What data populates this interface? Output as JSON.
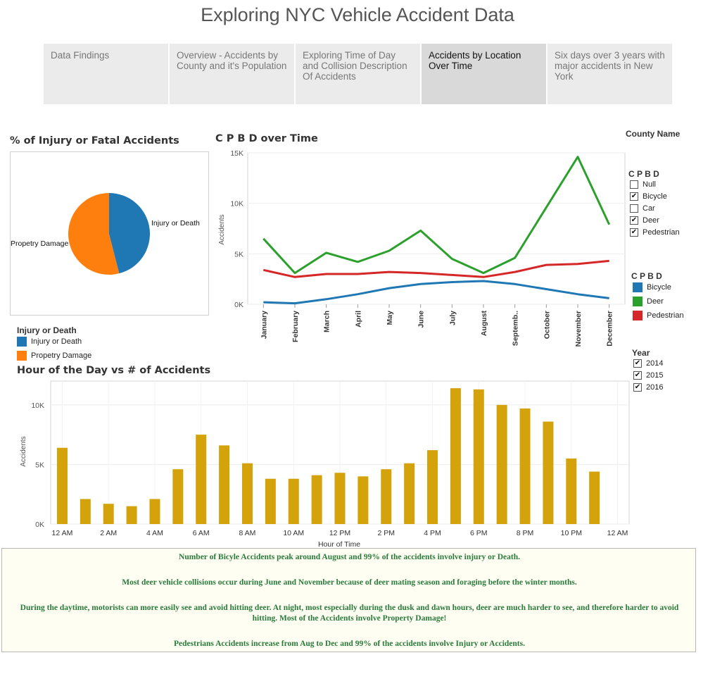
{
  "title": "Exploring NYC Vehicle Accident Data",
  "tabs": [
    {
      "label": "Data Findings"
    },
    {
      "label": "Overview - Accidents by County and it's Population"
    },
    {
      "label": "Exploring Time of Day and Collision Description Of Accidents"
    },
    {
      "label": "Accidents by Location Over Time"
    },
    {
      "label": "Six days over 3 years with major accidents in New York"
    }
  ],
  "active_tab": 3,
  "pie_title": "% of Injury or Fatal Accidents",
  "line_title": "C P B D over Time",
  "bar_title": "Hour of the Day vs # of Accidents",
  "filters": {
    "county_label": "County Name",
    "cpbd_title": "C P B D",
    "cpbd_options": [
      {
        "label": "Null",
        "checked": false
      },
      {
        "label": "Bicycle",
        "checked": true
      },
      {
        "label": "Car",
        "checked": false
      },
      {
        "label": "Deer",
        "checked": true
      },
      {
        "label": "Pedestrian",
        "checked": true
      }
    ],
    "cpbd_legend_title": "C P B D",
    "year_title": "Year",
    "year_options": [
      {
        "label": "2014",
        "checked": true
      },
      {
        "label": "2015",
        "checked": true
      },
      {
        "label": "2016",
        "checked": true
      }
    ]
  },
  "pie_legend": {
    "title": "Injury or Death",
    "items": [
      {
        "label": "Injury or Death",
        "color": "#1f77b4"
      },
      {
        "label": "Propetry Damage",
        "color": "#ff7f0e"
      }
    ]
  },
  "colors": {
    "bicycle": "#1f77b4",
    "deer": "#2ca02c",
    "pedestrian": "#d62728",
    "bar": "#d4a20a",
    "orange": "#ff7f0e"
  },
  "chart_data": [
    {
      "type": "pie",
      "title": "% of Injury or Fatal Accidents",
      "categories": [
        "Injury or Death",
        "Propetry Damage"
      ],
      "values": [
        46,
        54
      ],
      "labels": [
        "Injury or Death",
        "Propetry Damage"
      ]
    },
    {
      "type": "line",
      "title": "C P B D over Time",
      "ylabel": "Accidents",
      "ylim": [
        0,
        15000
      ],
      "yticks": [
        "0K",
        "5K",
        "10K",
        "15K"
      ],
      "categories": [
        "January",
        "February",
        "March",
        "April",
        "May",
        "June",
        "July",
        "August",
        "Septemb..",
        "October",
        "November",
        "December"
      ],
      "series": [
        {
          "name": "Bicycle",
          "values": [
            200,
            100,
            500,
            1000,
            1600,
            2000,
            2200,
            2300,
            2000,
            1500,
            1000,
            600
          ]
        },
        {
          "name": "Deer",
          "values": [
            6500,
            3100,
            5100,
            4200,
            5300,
            7300,
            4500,
            3100,
            4600,
            9600,
            14600,
            7900
          ]
        },
        {
          "name": "Pedestrian",
          "values": [
            3400,
            2700,
            3000,
            3000,
            3200,
            3100,
            2900,
            2700,
            3200,
            3900,
            4000,
            4300
          ]
        }
      ]
    },
    {
      "type": "bar",
      "title": "Hour of the Day vs # of Accidents",
      "xlabel": "Hour of Time",
      "ylabel": "Accidents",
      "ylim": [
        0,
        12000
      ],
      "yticks": [
        "0K",
        "5K",
        "10K"
      ],
      "xtick_labels": [
        "12 AM",
        "2 AM",
        "4 AM",
        "6 AM",
        "8 AM",
        "10 AM",
        "12 PM",
        "2 PM",
        "4 PM",
        "6 PM",
        "8 PM",
        "10 PM",
        "12 AM"
      ],
      "categories": [
        "0",
        "1",
        "2",
        "3",
        "4",
        "5",
        "6",
        "7",
        "8",
        "9",
        "10",
        "11",
        "12",
        "13",
        "14",
        "15",
        "16",
        "17",
        "18",
        "19",
        "20",
        "21",
        "22",
        "23"
      ],
      "values": [
        6400,
        2100,
        1700,
        1500,
        2100,
        4600,
        7500,
        6600,
        5100,
        3800,
        3800,
        4100,
        4300,
        4000,
        4600,
        5100,
        6200,
        11400,
        11300,
        10000,
        9700,
        8600,
        5500,
        4400
      ]
    }
  ],
  "findings": [
    "Number of Bicyle Accidents peak around August and 99% of the accidents involve injury or Death.",
    "Most deer vehicle collisions occur during June and November because of deer mating season and foraging before the winter months.",
    "During the daytime, motorists can more easily see and avoid hitting deer. At night, most especially during the dusk and dawn hours, deer are much harder to see, and therefore harder to avoid hitting. Most of the Accidents involve Property Damage!",
    "Pedestrians Accidents increase from Aug to Dec and 99% of the accidents involve Injury or Accidents."
  ]
}
